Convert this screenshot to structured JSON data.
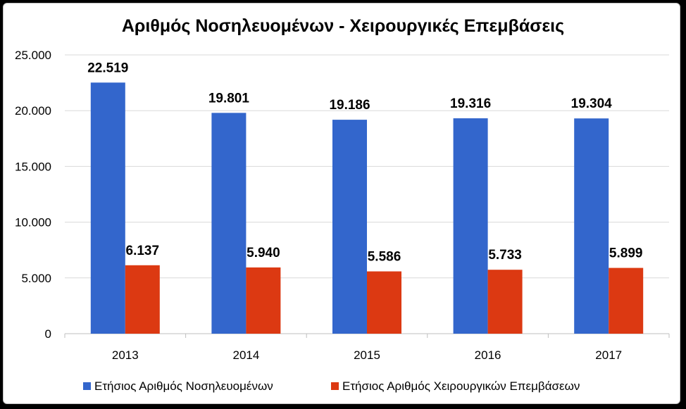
{
  "chart_data": {
    "type": "bar",
    "title": "Αριθμός Νοσηλευομένων - Χειρουργικές Επεμβάσεις",
    "categories": [
      "2013",
      "2014",
      "2015",
      "2016",
      "2017"
    ],
    "series": [
      {
        "name": "Ετήσιος Αριθμός Νοσηλευομένων",
        "color": "#3366cc",
        "values": [
          22519,
          19801,
          19186,
          19316,
          19304
        ],
        "labels": [
          "22.519",
          "19.801",
          "19.186",
          "19.316",
          "19.304"
        ]
      },
      {
        "name": "Ετήσιος Αριθμός Χειρουργικών Επεμβάσεων",
        "color": "#dc3912",
        "values": [
          6137,
          5940,
          5586,
          5733,
          5899
        ],
        "labels": [
          "6.137",
          "5.940",
          "5.586",
          "5.733",
          "5.899"
        ]
      }
    ],
    "ylim": [
      0,
      25000
    ],
    "yticks": [
      0,
      5000,
      10000,
      15000,
      20000,
      25000
    ],
    "ytick_labels": [
      "0",
      "5.000",
      "10.000",
      "15.000",
      "20.000",
      "25.000"
    ],
    "grid": true,
    "legend_position": "bottom",
    "xlabel": "",
    "ylabel": ""
  }
}
